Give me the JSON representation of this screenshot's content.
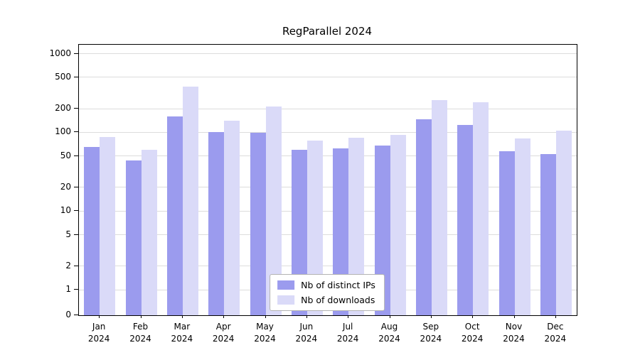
{
  "chart_data": {
    "type": "bar",
    "title": "RegParallel 2024",
    "categories": [
      "Jan",
      "Feb",
      "Mar",
      "Apr",
      "May",
      "Jun",
      "Jul",
      "Aug",
      "Sep",
      "Oct",
      "Nov",
      "Dec"
    ],
    "year": "2024",
    "series": [
      {
        "name": "Nb of distinct IPs",
        "slug": "distinct-ips",
        "color": "#9b9bee",
        "values": [
          65,
          44,
          160,
          100,
          98,
          60,
          62,
          68,
          148,
          125,
          58,
          53
        ]
      },
      {
        "name": "Nb of downloads",
        "slug": "downloads",
        "color": "#dadaf8",
        "values": [
          88,
          60,
          380,
          140,
          215,
          78,
          85,
          93,
          255,
          240,
          83,
          105
        ]
      }
    ],
    "yscale": "symlog",
    "yticks": [
      0,
      1,
      2,
      5,
      10,
      20,
      50,
      100,
      200,
      500,
      1000
    ],
    "ylim": [
      0,
      1300
    ],
    "grid": true,
    "legend_position": "lower center"
  }
}
